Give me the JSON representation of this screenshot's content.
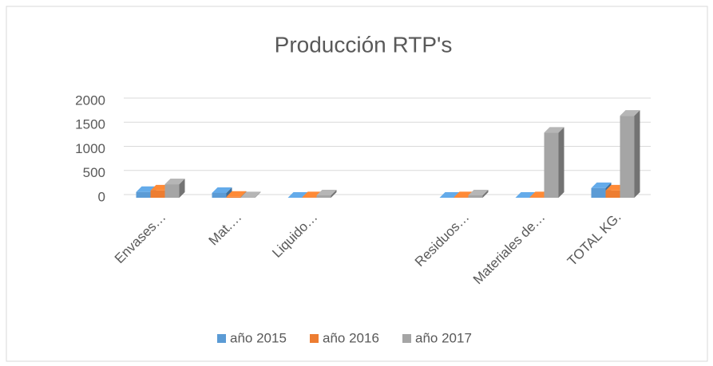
{
  "chart_data": {
    "type": "bar3d",
    "title": "Producción RTP's",
    "categories": [
      "Envases…",
      "Mat.…",
      "Liquido…",
      null,
      "Residuos…",
      "Materiales de…",
      "TOTAL KG."
    ],
    "series": [
      {
        "name": "año 2015",
        "color": "#5b9bd5",
        "values": [
          120,
          100,
          0,
          null,
          0,
          0,
          200
        ]
      },
      {
        "name": "año 2016",
        "color": "#ed7d31",
        "values": [
          150,
          20,
          10,
          null,
          10,
          10,
          150
        ]
      },
      {
        "name": "año 2017",
        "color": "#a5a5a5",
        "values": [
          280,
          10,
          50,
          null,
          50,
          1350,
          1700
        ]
      }
    ],
    "ylim": [
      0,
      2000
    ],
    "yticks": [
      0,
      500,
      1000,
      1500,
      2000
    ],
    "grid": true,
    "legend": "bottom"
  }
}
